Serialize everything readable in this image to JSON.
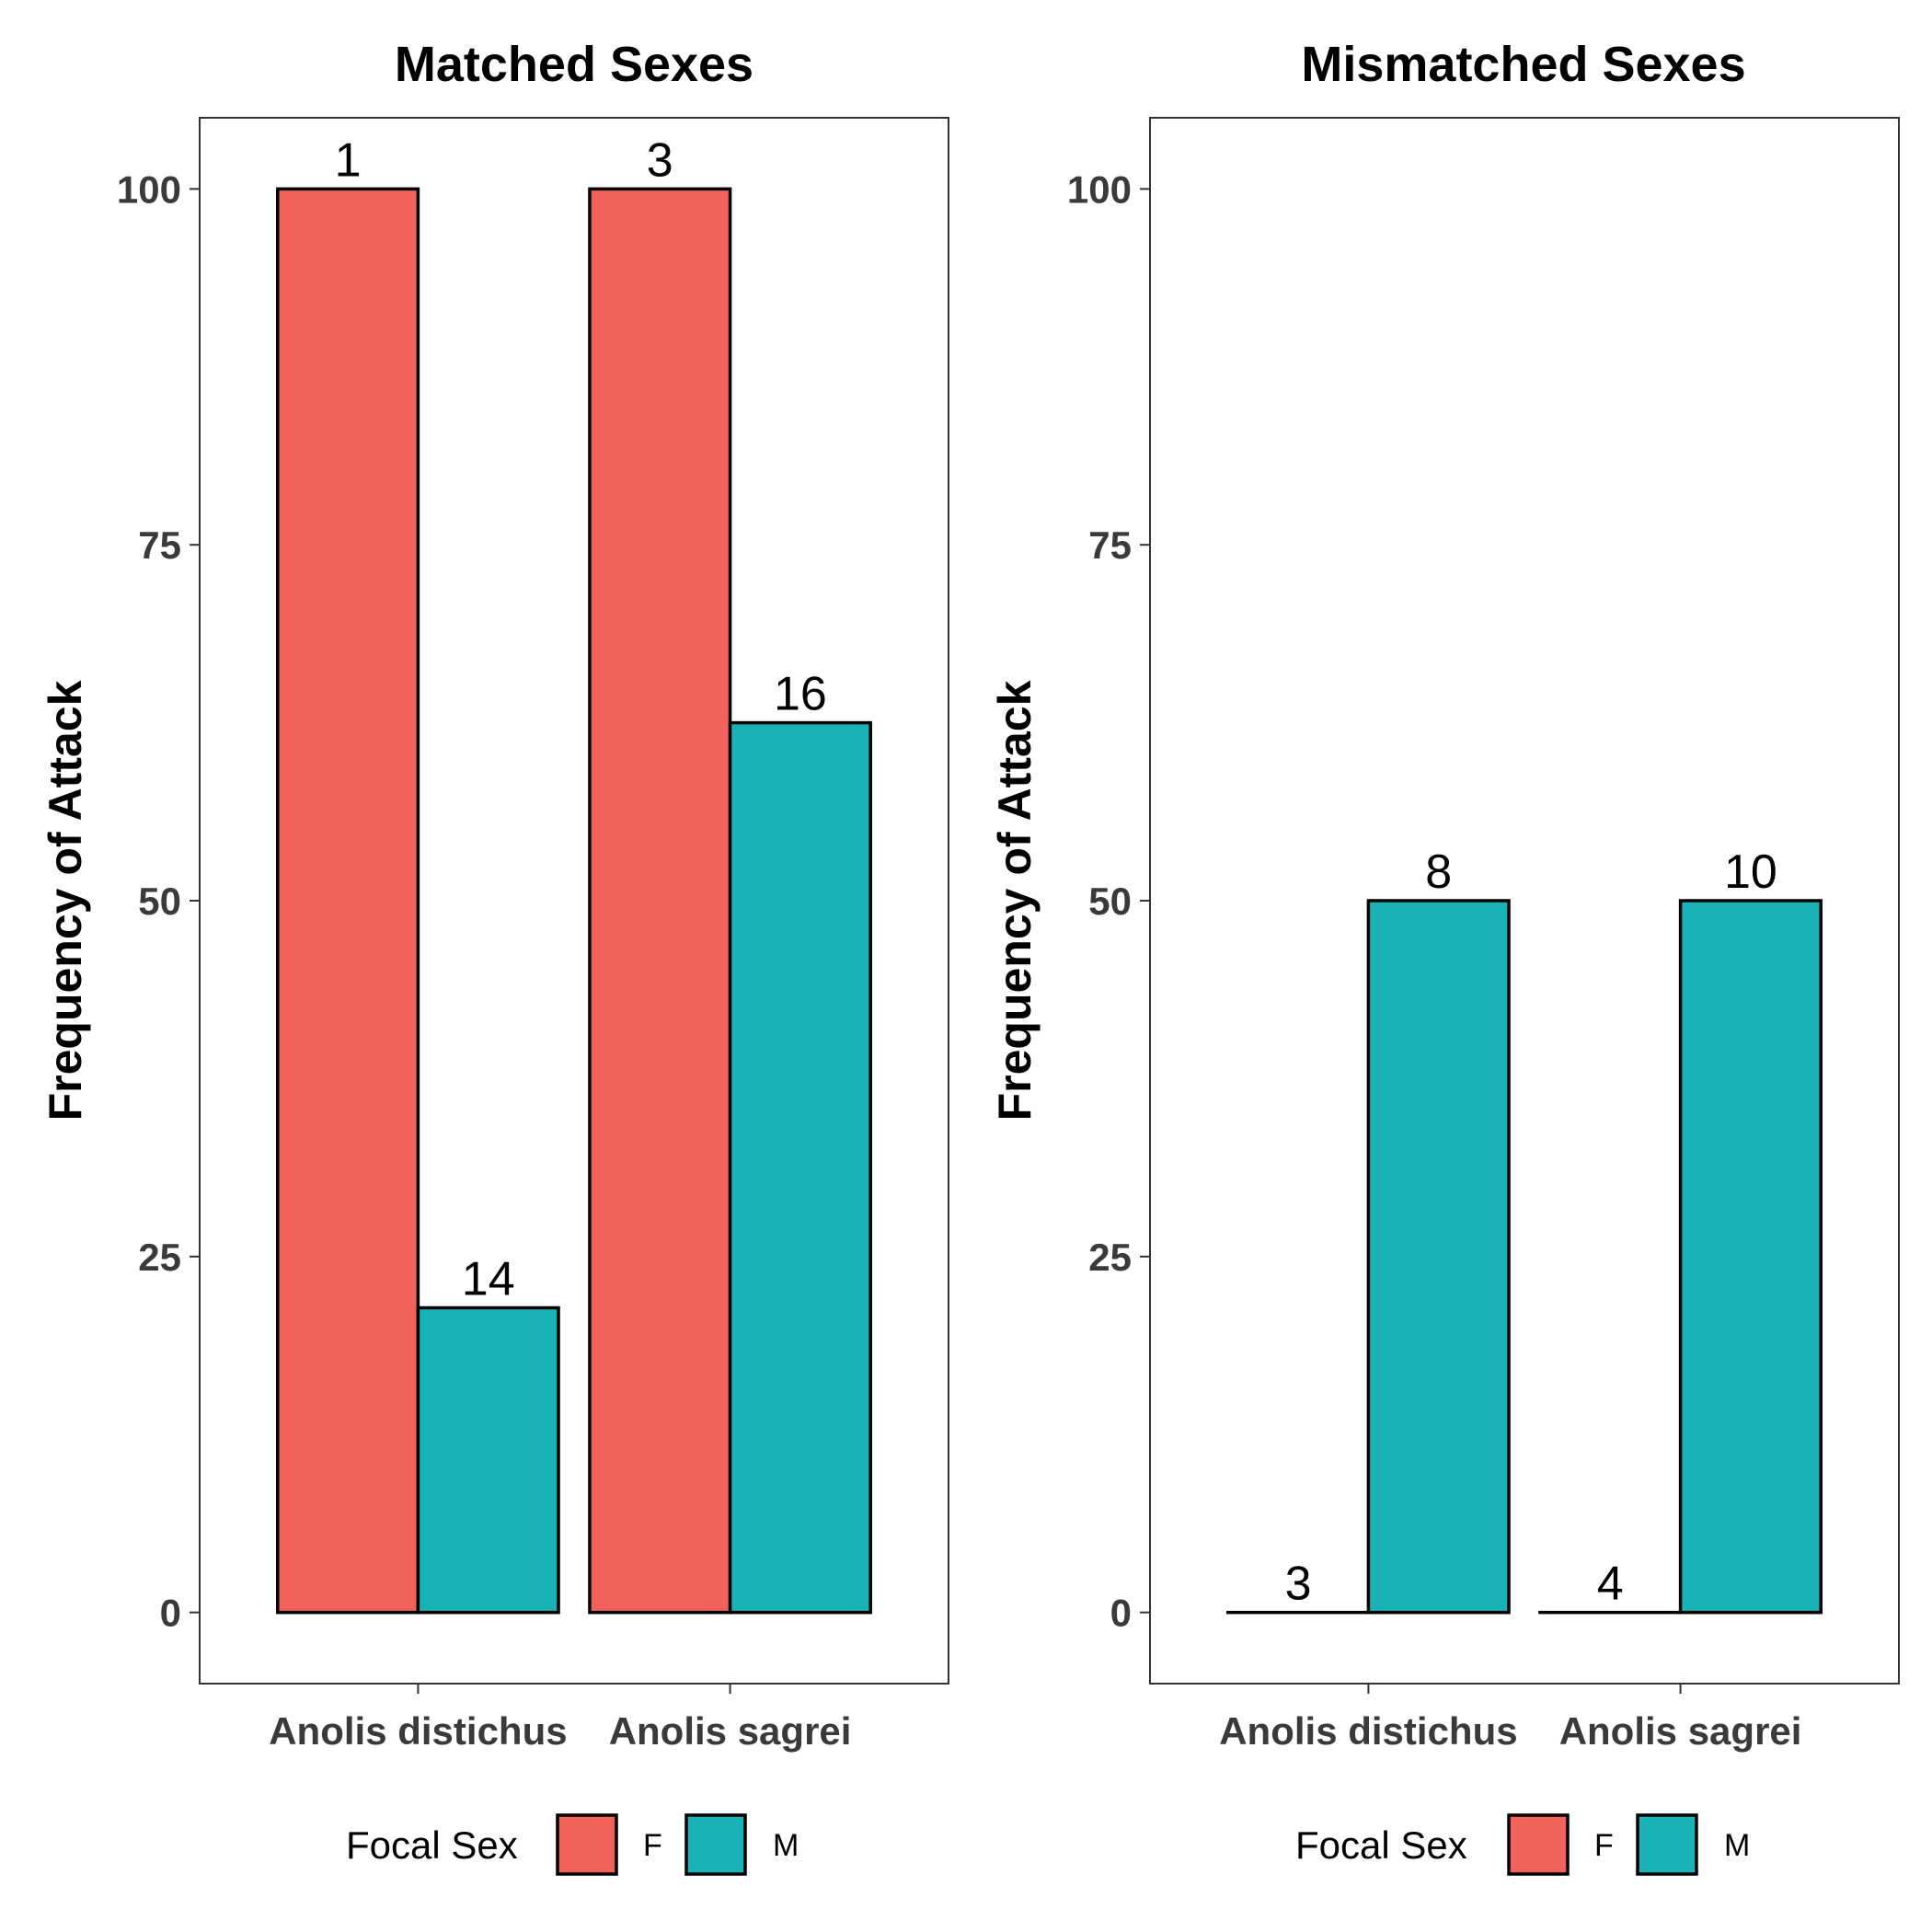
{
  "chart_data": [
    {
      "type": "bar",
      "title": "Matched Sexes",
      "xlabel": "",
      "ylabel": "Frequency of Attack",
      "ylim": [
        -5,
        105
      ],
      "yticks": [
        0,
        25,
        50,
        75,
        100
      ],
      "categories": [
        "Anolis distichus",
        "Anolis sagrei"
      ],
      "series": [
        {
          "name": "F",
          "values": [
            100,
            100
          ],
          "labels": [
            "1",
            "3"
          ]
        },
        {
          "name": "M",
          "values": [
            21.4,
            62.5
          ],
          "labels": [
            "14",
            "16"
          ]
        }
      ],
      "grid": false,
      "legend": {
        "title": "Focal Sex",
        "position": "bottom"
      }
    },
    {
      "type": "bar",
      "title": "Mismatched Sexes",
      "xlabel": "",
      "ylabel": "Frequency of Attack",
      "ylim": [
        -5,
        105
      ],
      "yticks": [
        0,
        25,
        50,
        75,
        100
      ],
      "categories": [
        "Anolis distichus",
        "Anolis sagrei"
      ],
      "series": [
        {
          "name": "F",
          "values": [
            0,
            0
          ],
          "labels": [
            "3",
            "4"
          ]
        },
        {
          "name": "M",
          "values": [
            50,
            50
          ],
          "labels": [
            "8",
            "10"
          ]
        }
      ],
      "grid": false,
      "legend": {
        "title": "Focal Sex",
        "position": "bottom"
      }
    }
  ],
  "colors": {
    "F": "#F3615D",
    "M": "#19B3B7",
    "outline": "#000000",
    "axis_text": "#3a3a3a"
  }
}
